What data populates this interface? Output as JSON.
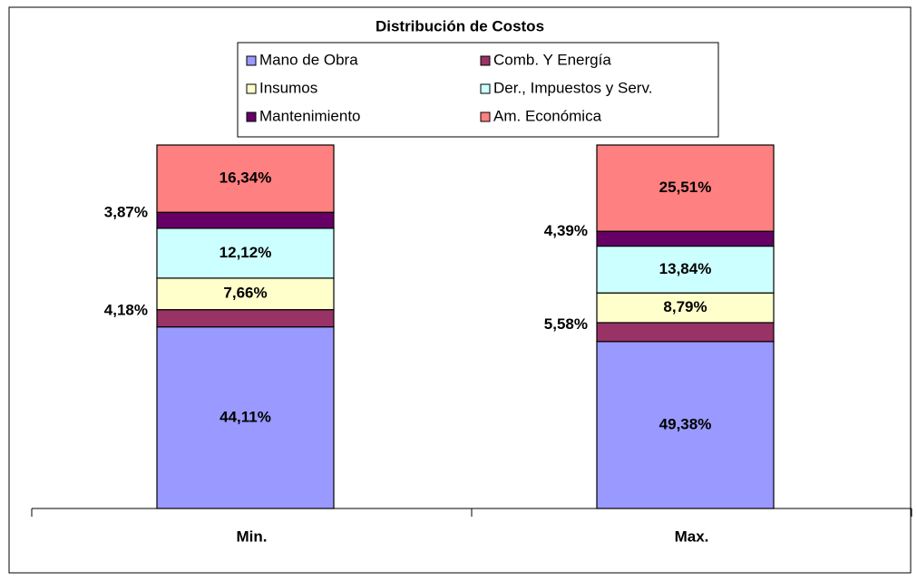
{
  "chart_data": {
    "type": "bar",
    "stacked": "percent",
    "title": "Distribución de Costos",
    "categories": [
      "Min.",
      "Max."
    ],
    "series": [
      {
        "name": "Mano de Obra",
        "color": "#9999ff",
        "values": [
          44.11,
          49.38
        ],
        "value_labels": [
          "44,11%",
          "49,38%"
        ]
      },
      {
        "name": "Comb. Y Energía",
        "color": "#993366",
        "values": [
          4.18,
          5.58
        ],
        "value_labels": [
          "4,18%",
          "5,58%"
        ]
      },
      {
        "name": "Insumos",
        "color": "#ffffcc",
        "values": [
          7.66,
          8.79
        ],
        "value_labels": [
          "7,66%",
          "8,79%"
        ]
      },
      {
        "name": "Der., Impuestos y Serv.",
        "color": "#ccffff",
        "values": [
          12.12,
          13.84
        ],
        "value_labels": [
          "12,12%",
          "13,84%"
        ]
      },
      {
        "name": "Mantenimiento",
        "color": "#660066",
        "values": [
          3.87,
          4.39
        ],
        "value_labels": [
          "3,87%",
          "4,39%"
        ]
      },
      {
        "name": "Am. Económica",
        "color": "#ff8080",
        "values": [
          16.34,
          25.51
        ],
        "value_labels": [
          "16,34%",
          "25,51%"
        ]
      }
    ],
    "legend": "top"
  }
}
